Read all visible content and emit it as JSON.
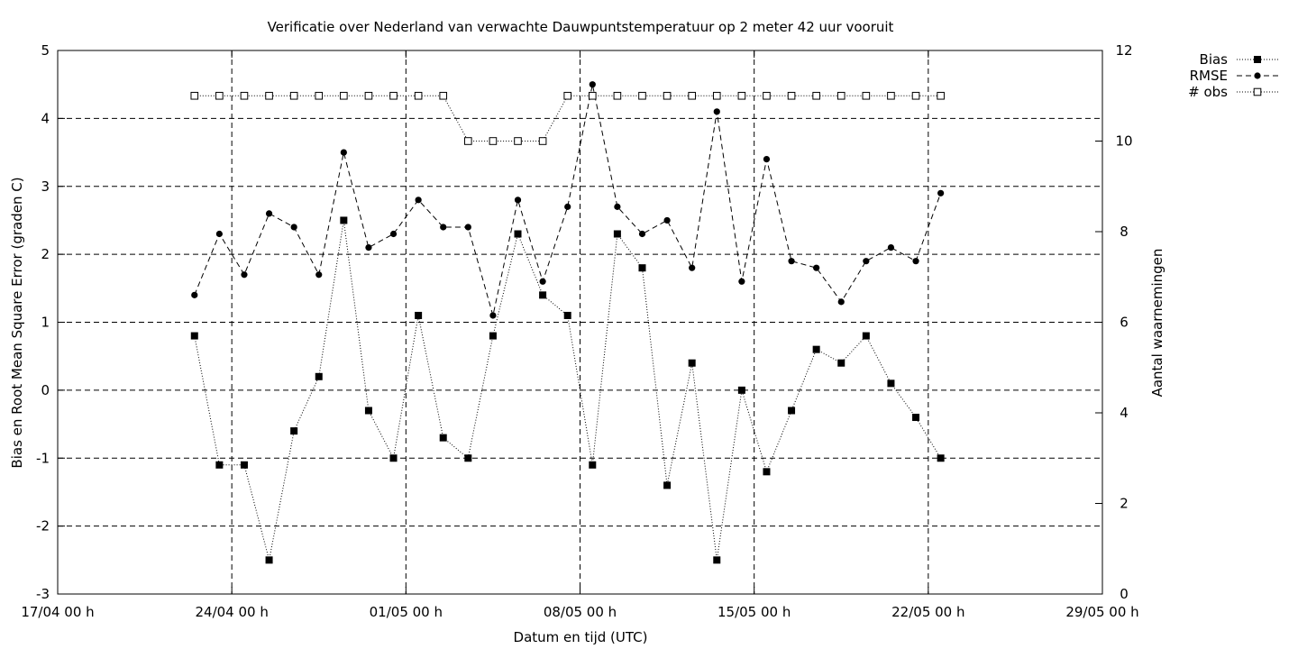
{
  "chart_data": {
    "type": "line",
    "title": "Verificatie over Nederland van verwachte Dauwpuntstemperatuur op 2 meter 42 uur vooruit",
    "xlabel": "Datum en tijd (UTC)",
    "ylabel": "Bias en Root Mean Square Error (graden C)",
    "y2label": "Aantal waarnemingen",
    "xlim": [
      "2014-04-17T00:00",
      "2014-05-29T00:00"
    ],
    "ylim": [
      -3,
      5
    ],
    "y2lim": [
      0,
      12
    ],
    "grid": true,
    "legend_position": "outside top-right",
    "x_ticks": [
      {
        "date": "2014-04-17T00:00",
        "label": "17/04 00 h"
      },
      {
        "date": "2014-04-24T00:00",
        "label": "24/04 00 h"
      },
      {
        "date": "2014-05-01T00:00",
        "label": "01/05 00 h"
      },
      {
        "date": "2014-05-08T00:00",
        "label": "08/05 00 h"
      },
      {
        "date": "2014-05-15T00:00",
        "label": "15/05 00 h"
      },
      {
        "date": "2014-05-22T00:00",
        "label": "22/05 00 h"
      },
      {
        "date": "2014-05-29T00:00",
        "label": "29/05 00 h"
      }
    ],
    "y_ticks": [
      "-3",
      "-2",
      "-1",
      "0",
      "1",
      "2",
      "3",
      "4",
      "5"
    ],
    "y2_ticks": [
      "0",
      "2",
      "4",
      "6",
      "8",
      "10",
      "12"
    ],
    "x": [
      "2014-04-22T12:00",
      "2014-04-23T12:00",
      "2014-04-24T12:00",
      "2014-04-25T12:00",
      "2014-04-26T12:00",
      "2014-04-27T12:00",
      "2014-04-28T12:00",
      "2014-04-29T12:00",
      "2014-04-30T12:00",
      "2014-05-01T12:00",
      "2014-05-02T12:00",
      "2014-05-03T12:00",
      "2014-05-04T12:00",
      "2014-05-05T12:00",
      "2014-05-06T12:00",
      "2014-05-07T12:00",
      "2014-05-08T12:00",
      "2014-05-09T12:00",
      "2014-05-10T12:00",
      "2014-05-11T12:00",
      "2014-05-12T12:00",
      "2014-05-13T12:00",
      "2014-05-14T12:00",
      "2014-05-15T12:00",
      "2014-05-16T12:00",
      "2014-05-17T12:00",
      "2014-05-18T12:00",
      "2014-05-19T12:00",
      "2014-05-20T12:00",
      "2014-05-21T12:00",
      "2014-05-22T12:00"
    ],
    "series": [
      {
        "name": "Bias",
        "axis": "left",
        "marker": "filled-square",
        "line": "dotted",
        "values": [
          0.8,
          -1.1,
          -1.1,
          -2.5,
          -0.6,
          0.2,
          2.5,
          -0.3,
          -1.0,
          1.1,
          -0.7,
          -1.0,
          0.8,
          2.3,
          1.4,
          1.1,
          -1.1,
          2.3,
          1.8,
          -1.4,
          0.4,
          -2.5,
          0.0,
          -1.2,
          -0.3,
          0.6,
          0.4,
          0.8,
          0.1,
          -0.4,
          -1.0
        ]
      },
      {
        "name": "RMSE",
        "axis": "left",
        "marker": "filled-circle",
        "line": "dashed",
        "values": [
          1.4,
          2.3,
          1.7,
          2.6,
          2.4,
          1.7,
          3.5,
          2.1,
          2.3,
          2.8,
          2.4,
          2.4,
          1.1,
          2.8,
          1.6,
          2.7,
          4.5,
          2.7,
          2.3,
          2.5,
          1.8,
          4.1,
          1.6,
          3.4,
          1.9,
          1.8,
          1.3,
          1.9,
          2.1,
          1.9,
          2.9
        ]
      },
      {
        "name": "# obs",
        "axis": "right",
        "marker": "open-square",
        "line": "dotted",
        "values": [
          11,
          11,
          11,
          11,
          11,
          11,
          11,
          11,
          11,
          11,
          11,
          10,
          10,
          10,
          10,
          11,
          11,
          11,
          11,
          11,
          11,
          11,
          11,
          11,
          11,
          11,
          11,
          11,
          11,
          11,
          11
        ]
      }
    ]
  }
}
